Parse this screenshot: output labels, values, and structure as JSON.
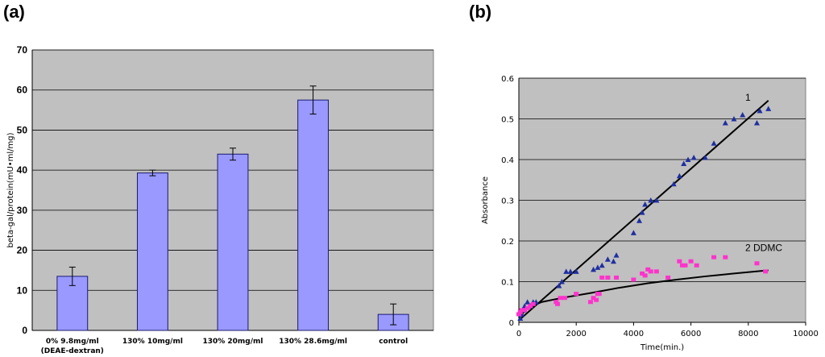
{
  "panels": {
    "a": "(a)",
    "b": "(b)"
  },
  "chart_data": [
    {
      "type": "bar",
      "title": "",
      "ylabel": "beta-gal/protein(mU•ml/mg)",
      "xlabel": "",
      "ylim": [
        0,
        70
      ],
      "yticks": [
        0,
        10,
        20,
        30,
        40,
        50,
        60,
        70
      ],
      "categories": [
        "0% 9.8mg/ml",
        "130% 10mg/ml",
        "130% 20mg/ml",
        "130% 28.6mg/ml",
        "control"
      ],
      "category_sublabels": [
        "(DEAE-dextran)",
        "",
        "",
        "",
        ""
      ],
      "values": [
        13.5,
        39.3,
        44.0,
        57.5,
        4.0
      ],
      "errors": [
        2.3,
        0.7,
        1.5,
        3.5,
        2.6
      ],
      "grid": true,
      "colors": {
        "bar": "#9999ff",
        "bar_edge": "#1a1a6e",
        "plot_bg": "#c0c0c0"
      }
    },
    {
      "type": "scatter",
      "title": "",
      "xlabel": "Time(min.)",
      "ylabel": "Absorbance",
      "xlim": [
        0,
        10000
      ],
      "ylim": [
        0,
        0.6
      ],
      "xticks": [
        0,
        2000,
        4000,
        6000,
        8000,
        10000
      ],
      "yticks": [
        0,
        0.1,
        0.2,
        0.3,
        0.4,
        0.5,
        0.6
      ],
      "grid": true,
      "annotations": [
        "1",
        "2 DDMC"
      ],
      "series": [
        {
          "marker": "triangle",
          "color": "#1f2fa0",
          "x": [
            50,
            100,
            150,
            200,
            300,
            400,
            500,
            600,
            1400,
            1500,
            1650,
            1800,
            2000,
            2600,
            2750,
            2900,
            3100,
            3300,
            3400,
            4000,
            4200,
            4300,
            4400,
            4600,
            4800,
            5400,
            5600,
            5750,
            5900,
            6100,
            6500,
            6800,
            7200,
            7500,
            7800,
            8300,
            8400,
            8700
          ],
          "y": [
            0.01,
            0.02,
            0.03,
            0.04,
            0.05,
            0.04,
            0.05,
            0.05,
            0.09,
            0.1,
            0.125,
            0.125,
            0.125,
            0.13,
            0.135,
            0.14,
            0.155,
            0.15,
            0.165,
            0.22,
            0.25,
            0.27,
            0.29,
            0.3,
            0.3,
            0.34,
            0.36,
            0.39,
            0.4,
            0.405,
            0.405,
            0.44,
            0.49,
            0.5,
            0.51,
            0.49,
            0.52,
            0.525
          ]
        },
        {
          "marker": "square",
          "color": "#ff33cc",
          "x": [
            0,
            50,
            100,
            200,
            300,
            400,
            500,
            1300,
            1350,
            1450,
            1600,
            2000,
            2500,
            2600,
            2700,
            2750,
            2800,
            2900,
            3100,
            3400,
            4000,
            4300,
            4400,
            4500,
            4600,
            4800,
            5200,
            5600,
            5700,
            5800,
            6000,
            6200,
            6800,
            7200,
            8300,
            8600
          ],
          "y": [
            0.02,
            0.025,
            0.03,
            0.03,
            0.035,
            0.04,
            0.045,
            0.05,
            0.045,
            0.06,
            0.06,
            0.07,
            0.05,
            0.06,
            0.055,
            0.07,
            0.07,
            0.11,
            0.11,
            0.11,
            0.105,
            0.12,
            0.115,
            0.13,
            0.125,
            0.125,
            0.11,
            0.15,
            0.14,
            0.14,
            0.15,
            0.14,
            0.16,
            0.16,
            0.145,
            0.125
          ]
        }
      ],
      "fit_lines": [
        {
          "type": "linear",
          "color": "#000000",
          "x": [
            0,
            8700
          ],
          "y": [
            0.005,
            0.545
          ]
        },
        {
          "type": "curve",
          "color": "#000000",
          "x": [
            0,
            300,
            800,
            1500,
            2500,
            3500,
            4500,
            5500,
            6500,
            7500,
            8700
          ],
          "y": [
            0.012,
            0.035,
            0.05,
            0.06,
            0.072,
            0.085,
            0.096,
            0.105,
            0.113,
            0.12,
            0.128
          ]
        }
      ]
    }
  ]
}
